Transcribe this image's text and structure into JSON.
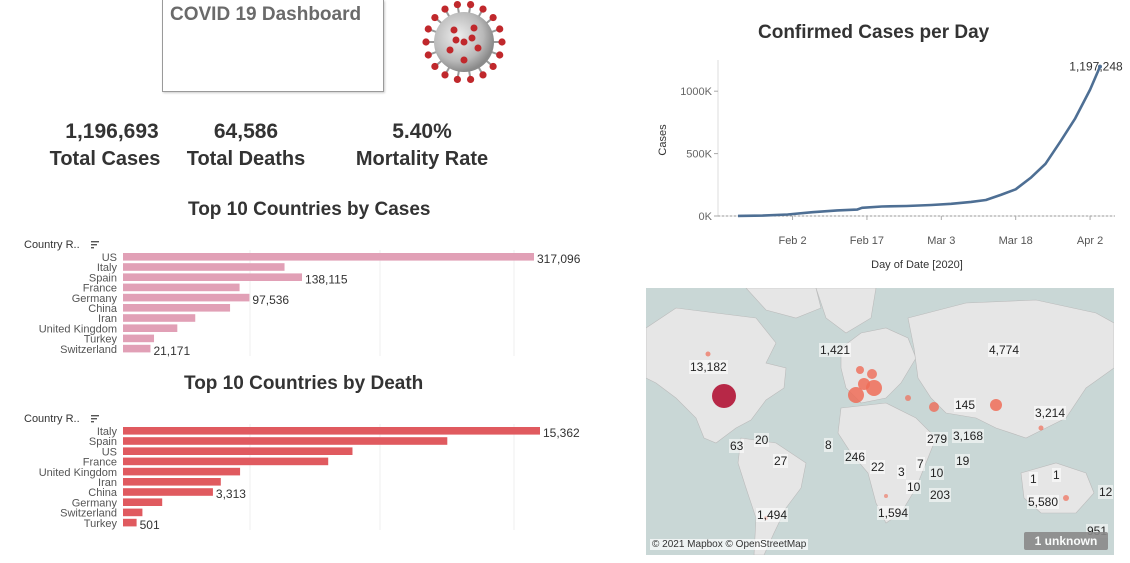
{
  "dashboard": {
    "title": "COVID 19 Dashboard"
  },
  "kpis": {
    "total_cases_value": "1,196,693",
    "total_cases_label": "Total Cases",
    "total_deaths_value": "64,586",
    "total_deaths_label": "Total Deaths",
    "mortality_value": "5.40%",
    "mortality_label": "Mortality Rate"
  },
  "colors": {
    "cases_bar": "#e1a0b6",
    "death_bar": "#e05a5f",
    "line": "#4e6f94",
    "map_water": "#c9d7d6",
    "map_land": "#e8e8e8",
    "bubble_us": "#b3183a",
    "bubble": "#ef6c57"
  },
  "cases_chart": {
    "title": "Top 10 Countries by Cases",
    "header": "Country R..",
    "sort_icon": "sort-icon"
  },
  "death_chart": {
    "title": "Top 10 Countries by Death",
    "header": "Country R..",
    "sort_icon": "sort-icon"
  },
  "line_chart": {
    "title": "Confirmed Cases per Day",
    "ylabel": "Cases",
    "xlabel": "Day of Date [2020]",
    "end_label": "1,197,248"
  },
  "map": {
    "attribution": "© 2021 Mapbox © OpenStreetMap",
    "unknown": "1 unknown",
    "labels": [
      "13,182",
      "1,421",
      "4,774",
      "145",
      "3,214",
      "3,168",
      "279",
      "63",
      "20",
      "8",
      "27",
      "246",
      "22",
      "3",
      "7",
      "10",
      "19",
      "10",
      "203",
      "1",
      "1",
      "5,580",
      "12",
      "1,494",
      "1,594",
      "951"
    ]
  },
  "chart_data": [
    {
      "type": "bar",
      "title": "Top 10 Countries by Cases",
      "categories": [
        "US",
        "Italy",
        "Spain",
        "France",
        "Germany",
        "China",
        "Iran",
        "United Kingdom",
        "Turkey",
        "Switzerland"
      ],
      "values": [
        317096,
        124632,
        138115,
        89953,
        97536,
        82602,
        55743,
        41903,
        23934,
        21171
      ],
      "data_labels": [
        "317,096",
        "",
        "138,115",
        "",
        "97,536",
        "",
        "",
        "",
        "",
        "21,171"
      ],
      "xlim": [
        0,
        340000
      ]
    },
    {
      "type": "bar",
      "title": "Top 10 Countries by Death",
      "categories": [
        "Italy",
        "Spain",
        "US",
        "France",
        "United Kingdom",
        "Iran",
        "China",
        "Germany",
        "Switzerland",
        "Turkey"
      ],
      "values": [
        15362,
        11947,
        8454,
        7560,
        4313,
        3603,
        3313,
        1444,
        715,
        501
      ],
      "data_labels": [
        "15,362",
        "",
        "",
        "",
        "",
        "",
        "3,313",
        "",
        "",
        "501"
      ],
      "xlim": [
        0,
        16500
      ]
    },
    {
      "type": "line",
      "title": "Confirmed Cases per Day",
      "xlabel": "Day of Date [2020]",
      "ylabel": "Cases",
      "x_ticks": [
        "Feb 2",
        "Feb 17",
        "Mar 3",
        "Mar 18",
        "Apr 2"
      ],
      "y_ticks": [
        "0K",
        "500K",
        "1000K"
      ],
      "ylim": [
        0,
        1250000
      ],
      "x": [
        "Jan 22",
        "Jan 27",
        "Feb 1",
        "Feb 6",
        "Feb 11",
        "Feb 15",
        "Feb 16",
        "Feb 20",
        "Feb 25",
        "Mar 1",
        "Mar 5",
        "Mar 9",
        "Mar 12",
        "Mar 15",
        "Mar 18",
        "Mar 21",
        "Mar 24",
        "Mar 27",
        "Mar 30",
        "Apr 2",
        "Apr 4"
      ],
      "values": [
        555,
        2900,
        12000,
        30800,
        45200,
        51000,
        66000,
        76000,
        80000,
        88000,
        97800,
        113000,
        128000,
        169000,
        214000,
        305000,
        418000,
        595000,
        782000,
        1013000,
        1197248
      ],
      "end_label": "1,197,248"
    }
  ]
}
